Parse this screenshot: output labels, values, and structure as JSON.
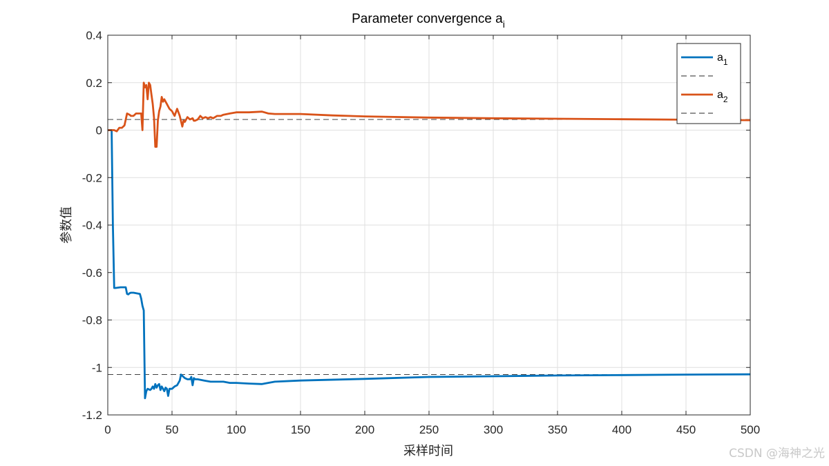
{
  "chart_data": {
    "type": "line",
    "title": "Parameter convergence a",
    "title_sub": "i",
    "xlabel": "采样时间",
    "ylabel": "参数值",
    "xlim": [
      0,
      500
    ],
    "ylim": [
      -1.2,
      0.4
    ],
    "xticks": [
      0,
      50,
      100,
      150,
      200,
      250,
      300,
      350,
      400,
      450,
      500
    ],
    "yticks": [
      -1.2,
      -1,
      -0.8,
      -0.6,
      -0.4,
      -0.2,
      0,
      0.2,
      0.4
    ],
    "xtick_labels": [
      "0",
      "50",
      "100",
      "150",
      "200",
      "250",
      "300",
      "350",
      "400",
      "450",
      "500"
    ],
    "ytick_labels": [
      "-1.2",
      "-1",
      "-0.8",
      "-0.6",
      "-0.4",
      "-0.2",
      "0",
      "0.2",
      "0.4"
    ],
    "grid": true,
    "legend_position": "top-right",
    "legend_entries": [
      {
        "name": "a",
        "sub": "1",
        "color": "#0072BD",
        "style": "solid"
      },
      {
        "name": "",
        "sub": "",
        "color": "#262626",
        "style": "dashed"
      },
      {
        "name": "a",
        "sub": "2",
        "color": "#D95319",
        "style": "solid"
      },
      {
        "name": "",
        "sub": "",
        "color": "#262626",
        "style": "dashed"
      }
    ],
    "series": [
      {
        "name": "a1",
        "color": "#0072BD",
        "x": [
          0,
          3,
          4,
          5,
          6,
          10,
          14,
          15,
          16,
          17,
          18,
          20,
          25,
          26,
          27,
          28,
          29,
          30,
          31,
          33,
          34,
          35,
          36,
          37,
          38,
          39,
          40,
          41,
          42,
          43,
          44,
          45,
          46,
          47,
          48,
          50,
          52,
          54,
          56,
          57,
          58,
          60,
          62,
          64,
          65,
          66,
          67,
          68,
          70,
          75,
          80,
          85,
          90,
          95,
          100,
          110,
          120,
          130,
          150,
          200,
          250,
          300,
          350,
          400,
          450,
          500
        ],
        "y": [
          0,
          0,
          -0.4,
          -0.665,
          -0.665,
          -0.662,
          -0.662,
          -0.69,
          -0.692,
          -0.687,
          -0.685,
          -0.685,
          -0.69,
          -0.71,
          -0.74,
          -0.76,
          -1.13,
          -1.1,
          -1.09,
          -1.095,
          -1.09,
          -1.08,
          -1.09,
          -1.07,
          -1.085,
          -1.075,
          -1.07,
          -1.095,
          -1.08,
          -1.09,
          -1.1,
          -1.085,
          -1.09,
          -1.12,
          -1.09,
          -1.09,
          -1.08,
          -1.075,
          -1.055,
          -1.03,
          -1.035,
          -1.045,
          -1.05,
          -1.05,
          -1.04,
          -1.075,
          -1.045,
          -1.05,
          -1.05,
          -1.055,
          -1.06,
          -1.06,
          -1.06,
          -1.065,
          -1.065,
          -1.068,
          -1.07,
          -1.06,
          -1.055,
          -1.048,
          -1.04,
          -1.037,
          -1.034,
          -1.032,
          -1.03,
          -1.029
        ]
      },
      {
        "name": "a2",
        "color": "#D95319",
        "x": [
          0,
          3,
          5,
          7,
          9,
          11,
          13,
          15,
          17,
          18,
          20,
          22,
          25,
          26,
          27,
          28,
          29,
          30,
          31,
          32,
          33,
          34,
          35,
          36,
          37,
          38,
          39,
          40,
          41,
          42,
          43,
          44,
          45,
          46,
          47,
          48,
          50,
          52,
          54,
          56,
          58,
          59,
          60,
          62,
          64,
          66,
          67,
          68,
          70,
          72,
          74,
          76,
          78,
          80,
          82,
          85,
          88,
          90,
          95,
          100,
          110,
          120,
          125,
          130,
          150,
          175,
          200,
          250,
          300,
          350,
          400,
          450,
          500
        ],
        "y": [
          0,
          0,
          0,
          -0.005,
          0.01,
          0.01,
          0.02,
          0.07,
          0.065,
          0.06,
          0.06,
          0.07,
          0.07,
          0.07,
          0.0,
          0.2,
          0.18,
          0.19,
          0.13,
          0.2,
          0.19,
          0.15,
          0.11,
          0.05,
          -0.07,
          -0.07,
          0.04,
          0.08,
          0.1,
          0.14,
          0.12,
          0.13,
          0.12,
          0.11,
          0.1,
          0.09,
          0.08,
          0.06,
          0.09,
          0.06,
          0.015,
          0.04,
          0.035,
          0.055,
          0.045,
          0.05,
          0.04,
          0.04,
          0.045,
          0.06,
          0.05,
          0.055,
          0.05,
          0.055,
          0.05,
          0.06,
          0.06,
          0.065,
          0.07,
          0.075,
          0.075,
          0.078,
          0.07,
          0.068,
          0.068,
          0.062,
          0.058,
          0.053,
          0.05,
          0.048,
          0.046,
          0.044,
          0.042
        ]
      }
    ],
    "reference_lines": [
      {
        "y": -1.03,
        "color": "#262626",
        "style": "dashed"
      },
      {
        "y": 0.045,
        "color": "#262626",
        "style": "dashed"
      }
    ]
  },
  "watermark": "CSDN @海神之光"
}
